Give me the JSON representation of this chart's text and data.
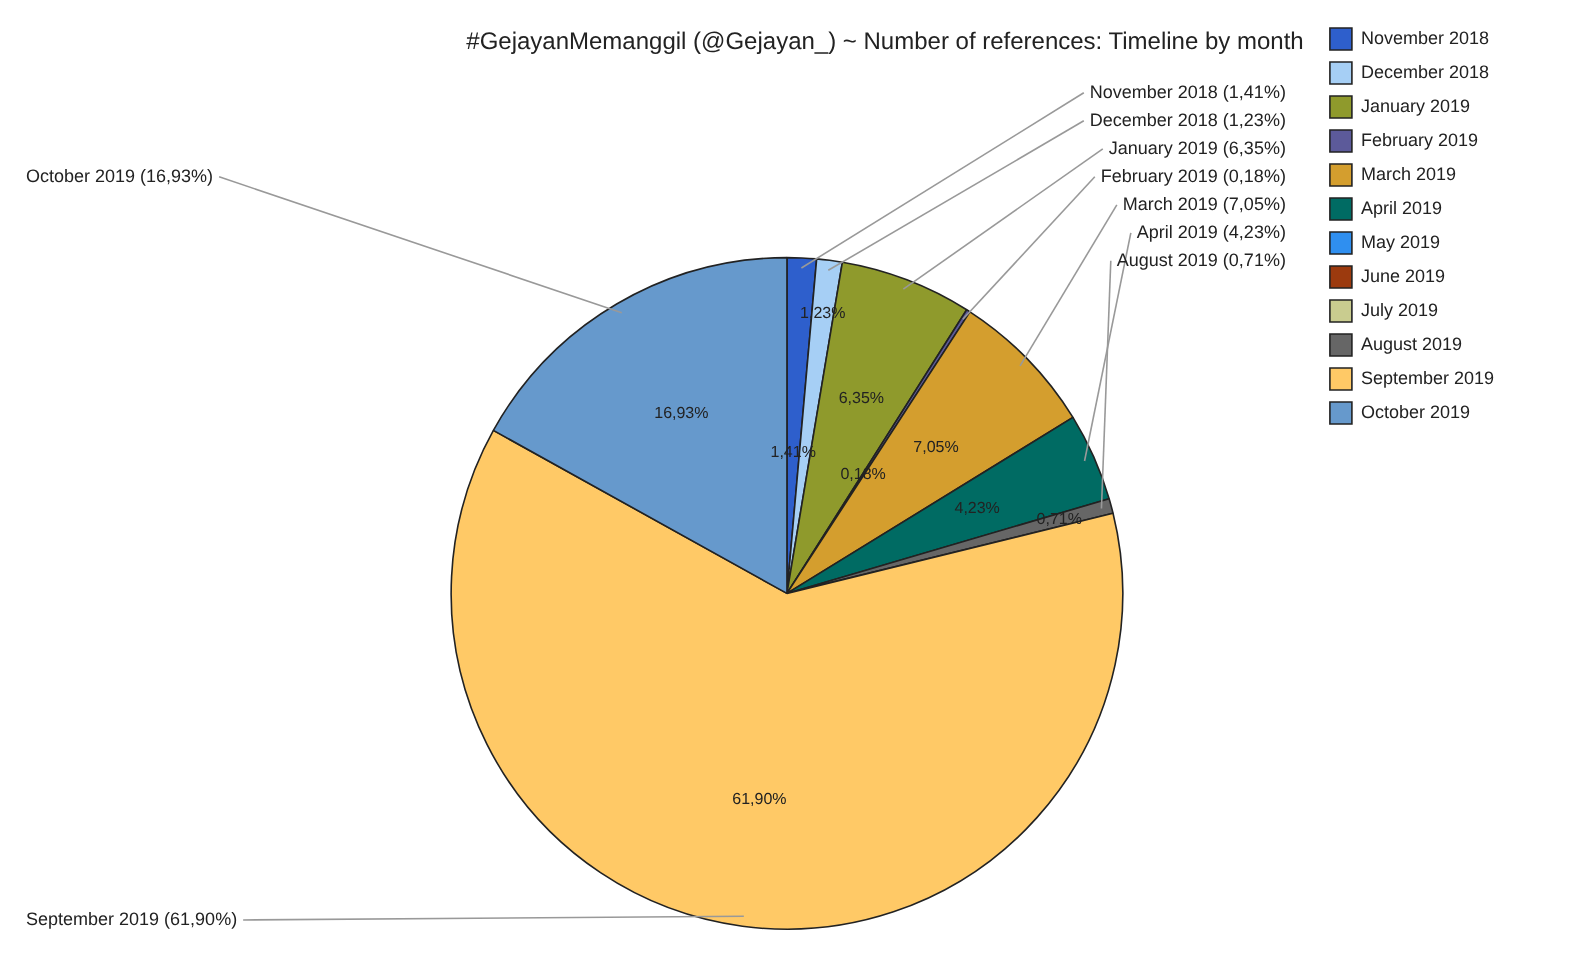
{
  "chart_data": {
    "type": "pie",
    "title": "#GejayanMemanggil (@Gejayan_) ~ Number of references: Timeline by month",
    "categories": [
      "November 2018",
      "December 2018",
      "January 2019",
      "February 2019",
      "March 2019",
      "April 2019",
      "May 2019",
      "June 2019",
      "July 2019",
      "August 2019",
      "September 2019",
      "October 2019"
    ],
    "values": [
      1.41,
      1.23,
      6.35,
      0.18,
      7.05,
      4.23,
      0,
      0,
      0,
      0.71,
      61.9,
      16.93
    ],
    "colors": [
      "#2e5fcc",
      "#a6cff5",
      "#8f9a2c",
      "#5c5a9a",
      "#d49e2e",
      "#006b63",
      "#2f8ff0",
      "#9c3a0e",
      "#c9cc8f",
      "#666666",
      "#ffc966",
      "#6699cc"
    ],
    "value_labels": [
      "1,41%",
      "1,23%",
      "6,35%",
      "0,18%",
      "7,05%",
      "4,23%",
      null,
      null,
      null,
      "0,71%",
      "61,90%",
      "16,93%"
    ],
    "annotations": [
      "November 2018 (1,41%)",
      "December 2018 (1,23%)",
      "January 2019 (6,35%)",
      "February 2019 (0,18%)",
      "March 2019 (7,05%)",
      "April 2019 (4,23%)",
      "August 2019 (0,71%)",
      "September 2019 (61,90%)",
      "October 2019 (16,93%)"
    ],
    "legend": "right"
  }
}
